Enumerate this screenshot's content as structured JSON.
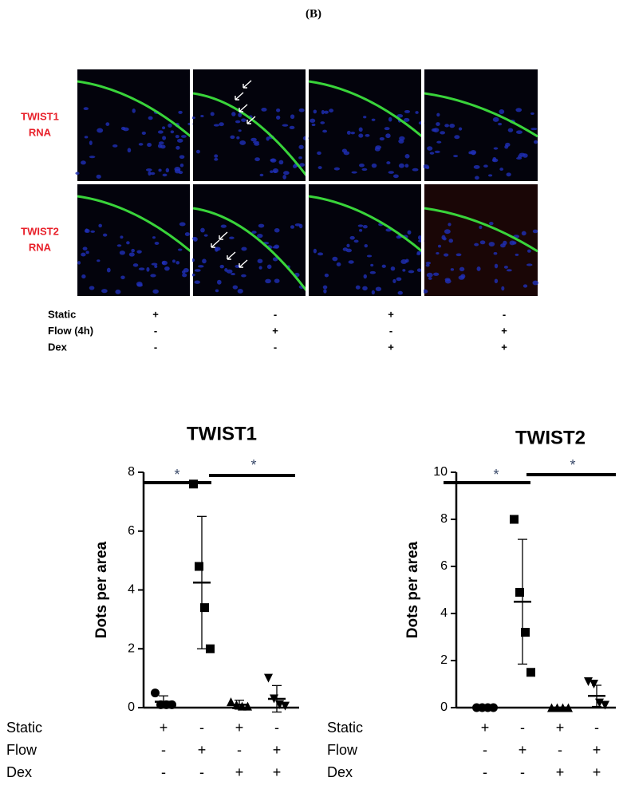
{
  "panel_label": "(B)",
  "images": {
    "row_labels": [
      [
        "TWIST1",
        "RNA"
      ],
      [
        "TWIST2",
        "RNA"
      ]
    ]
  },
  "conditions": {
    "labels": [
      "Static",
      "Flow (4h)",
      "Dex"
    ],
    "rows": [
      [
        "+",
        "-",
        "+",
        "-"
      ],
      [
        "-",
        "+",
        "-",
        "+"
      ],
      [
        "-",
        "-",
        "+",
        "+"
      ]
    ]
  },
  "chart_data": [
    {
      "type": "dot",
      "title": "TWIST1",
      "ylabel": "Dots per area",
      "ylim": [
        0,
        8
      ],
      "yticks": [
        0,
        2,
        4,
        6,
        8
      ],
      "series": [
        {
          "marker": "circle",
          "values": [
            0.5,
            0.1,
            0.1,
            0.1
          ],
          "mean": 0.2,
          "error": 0.2
        },
        {
          "marker": "square",
          "values": [
            7.6,
            4.8,
            3.4,
            2.0
          ],
          "mean": 4.25,
          "error": 2.25
        },
        {
          "marker": "triangle",
          "values": [
            0.2,
            0.1,
            0.05,
            0.05
          ],
          "mean": 0.1,
          "error": 0.15
        },
        {
          "marker": "triangle-down",
          "values": [
            1.0,
            0.3,
            0.1,
            0.05
          ],
          "mean": 0.3,
          "error": 0.45
        }
      ],
      "annotations": [
        "*",
        "*"
      ],
      "conditions": {
        "labels": [
          "Static",
          "Flow",
          "Dex"
        ],
        "rows": [
          [
            "+",
            "-",
            "+",
            "-"
          ],
          [
            "-",
            "+",
            "-",
            "+"
          ],
          [
            "-",
            "-",
            "+",
            "+"
          ]
        ]
      }
    },
    {
      "type": "dot",
      "title": "TWIST2",
      "ylabel": "Dots per area",
      "ylim": [
        0,
        10
      ],
      "yticks": [
        0,
        2,
        4,
        6,
        8,
        10
      ],
      "series": [
        {
          "marker": "circle",
          "values": [
            0,
            0,
            0,
            0
          ],
          "mean": 0,
          "error": 0
        },
        {
          "marker": "square",
          "values": [
            8.0,
            4.9,
            3.2,
            1.5
          ],
          "mean": 4.5,
          "error": 2.65
        },
        {
          "marker": "triangle",
          "values": [
            0,
            0,
            0,
            0
          ],
          "mean": 0,
          "error": 0
        },
        {
          "marker": "triangle-down",
          "values": [
            1.1,
            1.0,
            0.2,
            0.1
          ],
          "mean": 0.5,
          "error": 0.45
        }
      ],
      "annotations": [
        "*",
        "*"
      ],
      "conditions": {
        "labels": [
          "Static",
          "Flow",
          "Dex"
        ],
        "rows": [
          [
            "+",
            "-",
            "+",
            "-"
          ],
          [
            "-",
            "+",
            "-",
            "+"
          ],
          [
            "-",
            "-",
            "+",
            "+"
          ]
        ]
      }
    }
  ]
}
